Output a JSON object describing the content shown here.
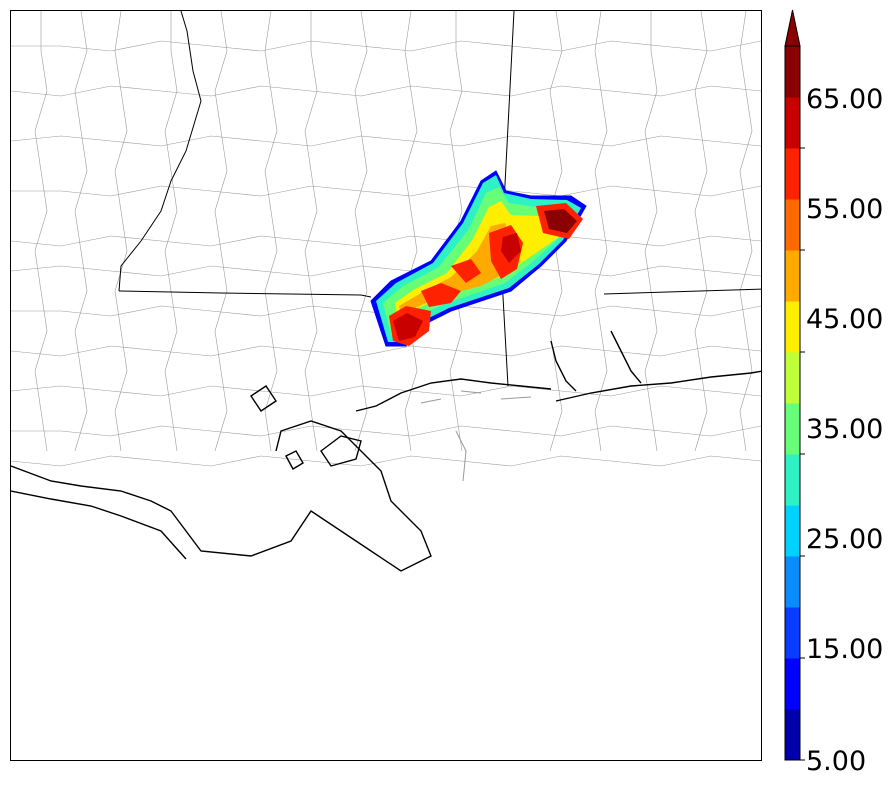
{
  "map": {
    "variable_levels": [
      5,
      10,
      15,
      20,
      25,
      30,
      35,
      40,
      45,
      50,
      55,
      60,
      65,
      70
    ],
    "colorbar": {
      "colors": [
        "#0000aa",
        "#0000ff",
        "#0a3cff",
        "#0a8cff",
        "#00d2ff",
        "#2ff2c4",
        "#66ff77",
        "#bfff38",
        "#ffee00",
        "#ffaa00",
        "#ff6a00",
        "#ff2200",
        "#c80000",
        "#8b0000"
      ],
      "tick_labels": [
        "5.00",
        "15.00",
        "25.00",
        "35.00",
        "45.00",
        "55.00",
        "65.00"
      ],
      "extend": "max"
    },
    "overlays": {
      "coastline_color": "#000000",
      "county_color": "#9a9a9a"
    }
  }
}
